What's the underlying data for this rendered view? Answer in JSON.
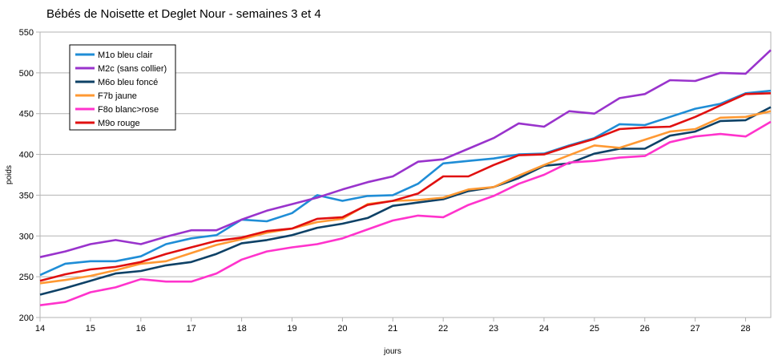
{
  "chart_data": {
    "type": "line",
    "title": "Bébés de Noisette et Deglet Nour - semaines 3 et 4",
    "xlabel": "jours",
    "ylabel": "poids",
    "xlim": [
      14,
      28.5
    ],
    "ylim": [
      200,
      550
    ],
    "xticks": [
      "14",
      "15",
      "16",
      "17",
      "18",
      "19",
      "20",
      "21",
      "22",
      "23",
      "24",
      "25",
      "26",
      "27",
      "28"
    ],
    "yticks": [
      "200",
      "250",
      "300",
      "350",
      "400",
      "450",
      "500",
      "550"
    ],
    "grid": "horizontal",
    "legend": "top-left",
    "x": [
      14,
      14.5,
      15,
      15.5,
      16,
      16.5,
      17,
      17.5,
      18,
      18.5,
      19,
      19.5,
      20,
      20.5,
      21,
      21.5,
      22,
      22.5,
      23,
      23.5,
      24,
      24.5,
      25,
      25.5,
      26,
      26.5,
      27,
      27.5,
      28,
      28.5
    ],
    "series": [
      {
        "name": "M1o bleu clair",
        "color": "#1f8dd6",
        "values": [
          252,
          266,
          269,
          269,
          275,
          290,
          297,
          301,
          320,
          318,
          328,
          350,
          343,
          349,
          350,
          364,
          389,
          392,
          395,
          400,
          401,
          411,
          420,
          437,
          436,
          446,
          456,
          462,
          475,
          478
        ]
      },
      {
        "name": "M2c (sans collier)",
        "color": "#9933cc",
        "values": [
          274,
          281,
          290,
          295,
          290,
          299,
          307,
          307,
          320,
          331,
          339,
          347,
          357,
          366,
          373,
          391,
          394,
          407,
          420,
          438,
          434,
          453,
          450,
          469,
          474,
          491,
          490,
          500,
          499,
          528
        ]
      },
      {
        "name": "M6o bleu foncé",
        "color": "#0e4166",
        "values": [
          228,
          236,
          245,
          254,
          257,
          264,
          268,
          278,
          291,
          295,
          301,
          310,
          315,
          322,
          337,
          341,
          345,
          355,
          360,
          371,
          386,
          389,
          401,
          407,
          407,
          423,
          428,
          441,
          442,
          458
        ]
      },
      {
        "name": "F7b jaune",
        "color": "#ff9933",
        "values": [
          242,
          246,
          251,
          258,
          266,
          269,
          279,
          289,
          296,
          304,
          309,
          317,
          321,
          339,
          343,
          344,
          347,
          357,
          360,
          374,
          387,
          399,
          411,
          408,
          418,
          428,
          431,
          445,
          446,
          453
        ]
      },
      {
        "name": "F8o blanc>rose",
        "color": "#ff33cc",
        "values": [
          215,
          219,
          231,
          237,
          247,
          244,
          244,
          254,
          271,
          281,
          286,
          290,
          297,
          308,
          319,
          325,
          323,
          338,
          349,
          364,
          375,
          390,
          392,
          396,
          398,
          415,
          422,
          425,
          422,
          440
        ]
      },
      {
        "name": "M9o rouge",
        "color": "#e01010",
        "values": [
          245,
          253,
          259,
          262,
          268,
          278,
          286,
          294,
          298,
          306,
          309,
          321,
          323,
          338,
          343,
          352,
          373,
          373,
          387,
          399,
          400,
          410,
          419,
          431,
          433,
          434,
          446,
          460,
          474,
          475
        ]
      }
    ]
  }
}
